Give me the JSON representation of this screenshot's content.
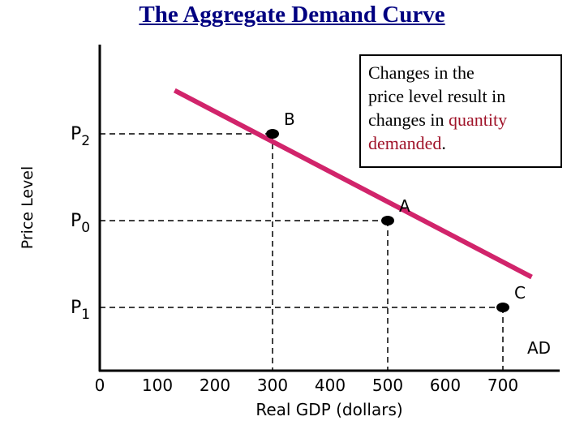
{
  "slide": {
    "title": "The Aggregate Demand Curve",
    "callout": {
      "lines": [
        "Changes in the",
        "price level result in",
        "changes in "
      ],
      "highlight1": "quantity",
      "highlight2": "demanded",
      "end": "."
    }
  },
  "chart_data": {
    "type": "line",
    "xlabel": "Real GDP (dollars)",
    "ylabel": "Price Level",
    "x_ticks": [
      "0",
      "100",
      "200",
      "300",
      "400",
      "500",
      "600",
      "700"
    ],
    "y_ticks": [
      "P2",
      "P0",
      "P1"
    ],
    "xlim": [
      0,
      780
    ],
    "series": [
      {
        "name": "AD",
        "color": "#d1246b",
        "points": [
          [
            130,
            2.5
          ],
          [
            750,
            0.35
          ]
        ]
      }
    ],
    "points": [
      {
        "label": "B",
        "x": 300,
        "y": 2,
        "y_tick": "P2"
      },
      {
        "label": "A",
        "x": 500,
        "y": 1,
        "y_tick": "P0"
      },
      {
        "label": "C",
        "x": 700,
        "y": 0,
        "y_tick": "P1"
      }
    ],
    "grid": false,
    "legend": "none"
  }
}
